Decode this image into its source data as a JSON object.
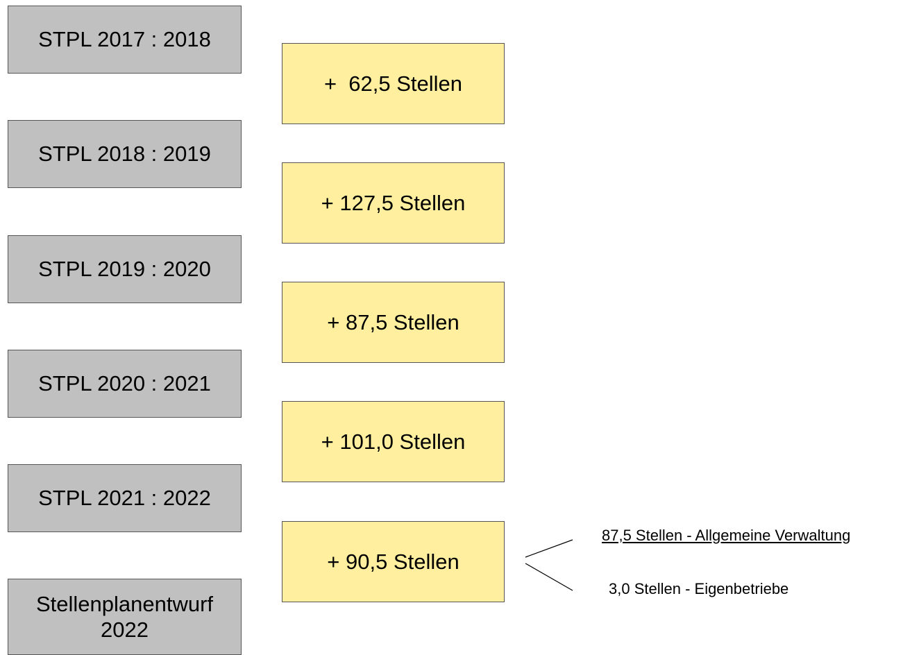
{
  "periods": [
    "STPL 2017 : 2018",
    "STPL 2018 : 2019",
    "STPL 2019 : 2020",
    "STPL 2020 : 2021",
    "STPL 2021 : 2022"
  ],
  "draft": {
    "lines": [
      "Stellenplanentwurf",
      "2022"
    ]
  },
  "changes": [
    "+  62,5 Stellen",
    "+ 127,5 Stellen",
    "+ 87,5 Stellen",
    "+ 101,0 Stellen",
    "+ 90,5 Stellen"
  ],
  "breakdown": [
    "87,5 Stellen - Allgemeine Verwaltung",
    "3,0 Stellen - Eigenbetriebe"
  ]
}
